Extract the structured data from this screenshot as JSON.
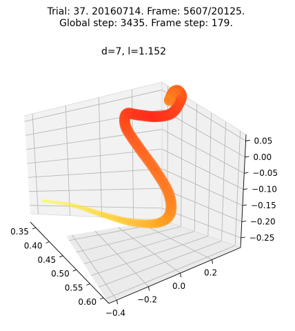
{
  "chart_data": {
    "type": "line3d",
    "title_line1": "Trial: 37. 20160714. Frame: 5607/20125.",
    "title_line2": "Global step: 3435. Frame step: 179.",
    "subtitle": "d=7, l=1.152",
    "x_ticks": [
      "0.35",
      "0.40",
      "0.45",
      "0.50",
      "0.55",
      "0.60"
    ],
    "y_ticks": [
      "−0.4",
      "−0.2",
      "0.0",
      "0.2"
    ],
    "z_ticks": [
      "0.05",
      "0.00",
      "−0.05",
      "−0.10",
      "−0.15",
      "−0.20",
      "−0.25"
    ],
    "xlim": [
      0.33,
      0.62
    ],
    "ylim": [
      -0.45,
      0.38
    ],
    "zlim": [
      -0.28,
      0.07
    ],
    "grid": true,
    "colormap": [
      "#ffff33",
      "#ff7f1f",
      "#ff2a1a"
    ],
    "series": [
      {
        "points": [
          [
            0.367,
            -0.431,
            -0.186
          ],
          [
            0.404,
            -0.307,
            -0.194
          ],
          [
            0.445,
            -0.183,
            -0.214
          ],
          [
            0.489,
            -0.081,
            -0.22
          ],
          [
            0.538,
            0.0,
            -0.196
          ],
          [
            0.56,
            0.039,
            -0.155
          ],
          [
            0.557,
            0.035,
            -0.096
          ],
          [
            0.531,
            -0.006,
            -0.037
          ],
          [
            0.497,
            -0.05,
            0.012
          ],
          [
            0.466,
            -0.079,
            0.054
          ],
          [
            0.446,
            -0.042,
            0.07
          ],
          [
            0.452,
            0.026,
            0.058
          ],
          [
            0.46,
            0.123,
            0.04
          ],
          [
            0.461,
            0.221,
            0.032
          ],
          [
            0.445,
            0.305,
            0.046
          ],
          [
            0.431,
            0.311,
            0.055
          ],
          [
            0.423,
            0.292,
            0.048
          ],
          [
            0.426,
            0.262,
            0.031
          ]
        ]
      }
    ]
  }
}
